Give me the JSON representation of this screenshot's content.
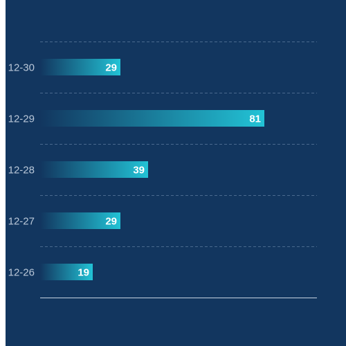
{
  "chart_data": {
    "type": "bar",
    "orientation": "horizontal",
    "categories": [
      "12-30",
      "12-29",
      "12-28",
      "12-27",
      "12-26"
    ],
    "values": [
      29,
      81,
      39,
      29,
      19
    ],
    "xlim": [
      0,
      100
    ],
    "grid": true,
    "legend": "none",
    "colors": {
      "background": "#12365f",
      "bar_start": "#12365f",
      "bar_end": "#22c3d6",
      "gridline": "#4a6a8f",
      "axis": "#c8d4e2",
      "category_label": "#b9c7d8",
      "value_label": "#ffffff"
    }
  }
}
